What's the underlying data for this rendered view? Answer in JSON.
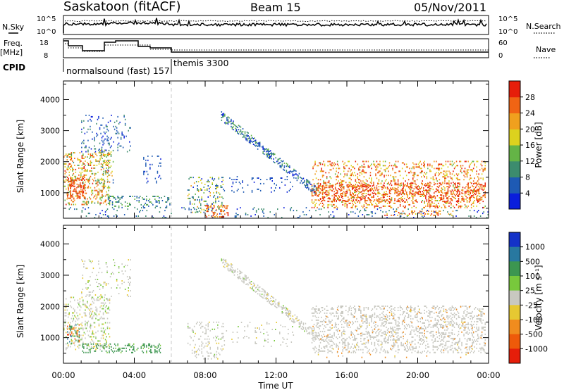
{
  "header": {
    "station": "Saskatoon (fitACF)",
    "beam": "Beam 15",
    "date": "05/Nov/2011"
  },
  "sky_panel": {
    "left_label": "N.Sky",
    "right_label": "N.Search",
    "left_ticks": [
      "10^5",
      "10^0"
    ],
    "right_ticks": [
      "10^5",
      "10^0"
    ]
  },
  "freq_panel": {
    "left_label_1": "Freq.",
    "left_label_2": "[MHz]",
    "right_label": "Nave",
    "left_ticks": [
      "18",
      "8"
    ],
    "right_ticks": [
      "60",
      "0"
    ]
  },
  "cpid": {
    "label": "CPID",
    "programs": [
      {
        "name": "normalsound (fast) 157",
        "start_hour": 0
      },
      {
        "name": "themis 3300",
        "start_hour": 6.0
      }
    ]
  },
  "x_axis": {
    "title": "Time UT",
    "ticks": [
      "00:00",
      "04:00",
      "08:00",
      "12:00",
      "16:00",
      "20:00",
      "00:00"
    ],
    "range_hours": [
      0,
      24
    ]
  },
  "power_panel": {
    "ylabel": "Slant Range [km]",
    "yticks": [
      "1000",
      "2000",
      "3000",
      "4000"
    ],
    "colorbar_title": "Power [dB]",
    "colorbar_ticks": [
      "4",
      "8",
      "12",
      "16",
      "20",
      "24",
      "28"
    ]
  },
  "velocity_panel": {
    "ylabel": "Slant Range [km]",
    "yticks": [
      "1000",
      "2000",
      "3000",
      "4000"
    ],
    "colorbar_title": "Velocity [m s⁻¹]",
    "colorbar_ticks": [
      "1000",
      "500",
      "100",
      "25",
      "-25",
      "-100",
      "-500",
      "-1000"
    ]
  },
  "colors": {
    "power_scale": [
      "#0a1edc",
      "#1e5ab4",
      "#3c8c6e",
      "#64b446",
      "#dcd21e",
      "#f0a01e",
      "#f06414",
      "#e61e0a"
    ],
    "velocity_scale": [
      "#1432c8",
      "#2878a0",
      "#3c9650",
      "#78c83c",
      "#c8c8c0",
      "#e6c832",
      "#f08c1e",
      "#ee5a0a",
      "#e61e0a"
    ]
  },
  "chart_data": [
    {
      "type": "heatmap",
      "title": "Power",
      "x_units": "hours UT",
      "y_units": "km",
      "ylim": [
        180,
        4600
      ],
      "xlim": [
        0,
        24
      ],
      "value_units": "dB",
      "scatter_regions": [
        {
          "t0": 0.0,
          "t1": 2.6,
          "r0": 600,
          "r1": 2300,
          "v": 20,
          "dv": 9,
          "density": 0.55
        },
        {
          "t0": 0.2,
          "t1": 1.2,
          "r0": 800,
          "r1": 1500,
          "v": 27,
          "dv": 3,
          "density": 0.85
        },
        {
          "t0": 1.0,
          "t1": 3.8,
          "r0": 2300,
          "r1": 3500,
          "v": 6,
          "dv": 4,
          "density": 0.25
        },
        {
          "t0": 2.0,
          "t1": 2.8,
          "r0": 1300,
          "r1": 2400,
          "v": 14,
          "dv": 8,
          "density": 0.45
        },
        {
          "t0": 2.5,
          "t1": 6.0,
          "r0": 500,
          "r1": 900,
          "v": 10,
          "dv": 6,
          "density": 0.45
        },
        {
          "t0": 4.5,
          "t1": 5.5,
          "r0": 1300,
          "r1": 2200,
          "v": 5,
          "dv": 3,
          "density": 0.2
        },
        {
          "t0": 0.0,
          "t1": 24.0,
          "r0": 180,
          "r1": 500,
          "v": 7,
          "dv": 5,
          "density": 0.12
        },
        {
          "t0": 7.0,
          "t1": 9.0,
          "r0": 300,
          "r1": 1500,
          "v": 12,
          "dv": 9,
          "density": 0.35
        },
        {
          "t0": 8.0,
          "t1": 9.3,
          "r0": 200,
          "r1": 600,
          "v": 26,
          "dv": 4,
          "density": 0.7
        },
        {
          "t0": 9.0,
          "t1": 13.0,
          "r0": 1000,
          "r1": 1500,
          "v": 5,
          "dv": 3,
          "density": 0.15
        },
        {
          "t0": 14.0,
          "t1": 23.8,
          "r0": 500,
          "r1": 2000,
          "v": 23,
          "dv": 8,
          "density": 0.45
        },
        {
          "t0": 14.0,
          "t1": 23.8,
          "r0": 700,
          "r1": 1300,
          "v": 27,
          "dv": 4,
          "density": 0.55
        },
        {
          "t0": 18.0,
          "t1": 22.0,
          "r0": 250,
          "r1": 400,
          "v": 24,
          "dv": 5,
          "density": 0.4
        }
      ],
      "tracks": [
        {
          "t_start": 8.9,
          "t_end": 14.3,
          "r_start": 3450,
          "r_end": 1000,
          "width_km": 280,
          "v": 8,
          "dv": 6,
          "density": 0.7
        }
      ]
    },
    {
      "type": "heatmap",
      "title": "Velocity",
      "x_units": "hours UT",
      "y_units": "km",
      "ylim": [
        180,
        4600
      ],
      "xlim": [
        0,
        24
      ],
      "value_units": "m s^-1",
      "scatter_regions": [
        {
          "t0": 0.0,
          "t1": 2.6,
          "r0": 600,
          "r1": 2300,
          "v": 0,
          "dv": 40,
          "density": 0.4
        },
        {
          "t0": 0.2,
          "t1": 0.9,
          "r0": 800,
          "r1": 1400,
          "v": -200,
          "dv": 900,
          "density": 0.7
        },
        {
          "t0": 1.0,
          "t1": 3.8,
          "r0": 2300,
          "r1": 3500,
          "v": 0,
          "dv": 40,
          "density": 0.2
        },
        {
          "t0": 1.0,
          "t1": 5.5,
          "r0": 500,
          "r1": 800,
          "v": 150,
          "dv": 60,
          "density": 0.55
        },
        {
          "t0": 7.0,
          "t1": 9.0,
          "r0": 300,
          "r1": 1500,
          "v": 0,
          "dv": 30,
          "density": 0.3
        },
        {
          "t0": 9.0,
          "t1": 13.0,
          "r0": 700,
          "r1": 1500,
          "v": 0,
          "dv": 30,
          "density": 0.12
        },
        {
          "t0": 14.0,
          "t1": 23.8,
          "r0": 500,
          "r1": 2000,
          "v": 0,
          "dv": 20,
          "density": 0.5
        },
        {
          "t0": 14.0,
          "t1": 23.8,
          "r0": 300,
          "r1": 2000,
          "v": -150,
          "dv": 150,
          "density": 0.04
        }
      ],
      "tracks": [
        {
          "t_start": 8.9,
          "t_end": 14.3,
          "r_start": 3450,
          "r_end": 1000,
          "width_km": 280,
          "v": 0,
          "dv": 30,
          "density": 0.65
        }
      ]
    }
  ]
}
